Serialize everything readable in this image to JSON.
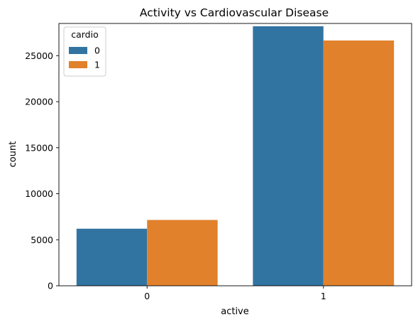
{
  "chart_data": {
    "type": "bar",
    "title": "Activity vs Cardiovascular Disease",
    "xlabel": "active",
    "ylabel": "count",
    "categories": [
      "0",
      "1"
    ],
    "ylim": [
      0,
      28500
    ],
    "yticks": [
      0,
      5000,
      10000,
      15000,
      20000,
      25000
    ],
    "grid": false,
    "legend": {
      "title": "cardio",
      "placement": "top-left"
    },
    "series": [
      {
        "name": "0",
        "color": "#3274a1",
        "values": [
          6200,
          28200
        ]
      },
      {
        "name": "1",
        "color": "#e1812c",
        "values": [
          7150,
          26650
        ]
      }
    ]
  }
}
